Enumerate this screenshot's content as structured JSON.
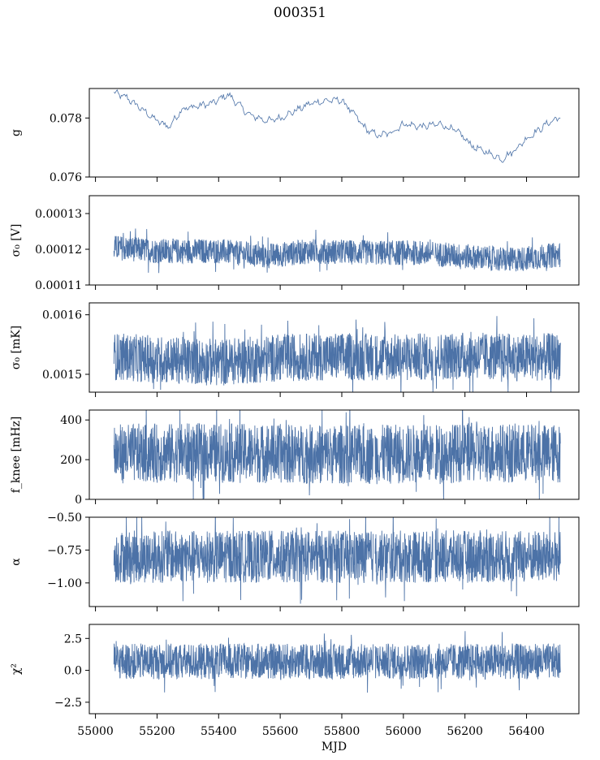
{
  "title": "000351",
  "colors": {
    "series": "#4c72a7",
    "frame": "#000000"
  },
  "chart_data": [
    {
      "type": "line",
      "key": "g",
      "ylabel": "g",
      "ylim": [
        0.076,
        0.079
      ],
      "yticks": [
        0.076,
        0.078
      ],
      "ytick_labels": [
        "0.076",
        "0.078"
      ],
      "style": "trend",
      "x": [
        55060,
        55100,
        55150,
        55200,
        55240,
        55280,
        55330,
        55380,
        55430,
        55450,
        55500,
        55560,
        55600,
        55640,
        55700,
        55760,
        55800,
        55850,
        55880,
        55920,
        55960,
        56000,
        56060,
        56120,
        56180,
        56230,
        56280,
        56320,
        56360,
        56400,
        56440,
        56480,
        56510
      ],
      "y": [
        0.07885,
        0.0787,
        0.0783,
        0.0779,
        0.0777,
        0.0783,
        0.0784,
        0.0785,
        0.0788,
        0.0786,
        0.0781,
        0.0779,
        0.078,
        0.0782,
        0.0785,
        0.0786,
        0.0786,
        0.078,
        0.0776,
        0.0774,
        0.0775,
        0.0778,
        0.0777,
        0.0778,
        0.0775,
        0.077,
        0.0768,
        0.0766,
        0.0769,
        0.0773,
        0.0776,
        0.0779,
        0.078
      ]
    },
    {
      "type": "line",
      "key": "sigma0_v",
      "ylabel": "σ₀ [V]",
      "ylim": [
        0.00011,
        0.000135
      ],
      "yticks": [
        0.00011,
        0.00012,
        0.00013
      ],
      "ytick_labels": [
        "0.00011",
        "0.00012",
        "0.00013"
      ],
      "style": "band",
      "x": [
        55060,
        55200,
        55400,
        55550,
        55700,
        55900,
        56050,
        56200,
        56350,
        56510
      ],
      "y": [
        0.0001205,
        0.0001195,
        0.0001195,
        0.000118,
        0.0001195,
        0.000119,
        0.000119,
        0.000118,
        0.000117,
        0.0001185
      ],
      "band_half_width": 3.5e-06
    },
    {
      "type": "line",
      "key": "sigma0_mk",
      "ylabel": "σ₀ [mK]",
      "ylim": [
        0.00147,
        0.00162
      ],
      "yticks": [
        0.0015,
        0.0016
      ],
      "ytick_labels": [
        "0.0015",
        "0.0016"
      ],
      "style": "band",
      "x": [
        55060,
        55200,
        55400,
        55600,
        55800,
        56000,
        56200,
        56400,
        56510
      ],
      "y": [
        0.00153,
        0.001525,
        0.00152,
        0.001528,
        0.00153,
        0.001528,
        0.001532,
        0.001528,
        0.00153
      ],
      "band_half_width": 4e-05
    },
    {
      "type": "line",
      "key": "fknee",
      "ylabel": "f_knee [mHz]",
      "ylim": [
        0,
        450
      ],
      "yticks": [
        0,
        200,
        400
      ],
      "ytick_labels": [
        "0",
        "200",
        "400"
      ],
      "style": "band",
      "x": [
        55060,
        55300,
        55600,
        55900,
        56200,
        56510
      ],
      "y": [
        230,
        235,
        230,
        225,
        235,
        230
      ],
      "band_half_width": 150
    },
    {
      "type": "line",
      "key": "alpha",
      "ylabel": "α",
      "ylim": [
        -1.18,
        -0.5
      ],
      "yticks": [
        -1.0,
        -0.75,
        -0.5
      ],
      "ytick_labels": [
        "−1.00",
        "−0.75",
        "−0.50"
      ],
      "style": "band",
      "x": [
        55060,
        55300,
        55600,
        55900,
        56200,
        56510
      ],
      "y": [
        -0.8,
        -0.8,
        -0.8,
        -0.8,
        -0.8,
        -0.8
      ],
      "band_half_width": 0.2
    },
    {
      "type": "line",
      "key": "chi2",
      "ylabel": "χ²",
      "ylim": [
        -3.4,
        3.6
      ],
      "yticks": [
        -2.5,
        0.0,
        2.5
      ],
      "ytick_labels": [
        "−2.5",
        "0.0",
        "2.5"
      ],
      "style": "band",
      "x": [
        55060,
        55300,
        55600,
        55900,
        56200,
        56510
      ],
      "y": [
        0.7,
        0.7,
        0.7,
        0.7,
        0.7,
        0.7
      ],
      "band_half_width": 1.4,
      "xlabel": "MJD",
      "xticks": [
        55000,
        55200,
        55400,
        55600,
        55800,
        56000,
        56200,
        56400
      ],
      "xtick_labels": [
        "55000",
        "55200",
        "55400",
        "55600",
        "55800",
        "56000",
        "56200",
        "56400"
      ]
    }
  ],
  "shared_x": {
    "xlim": [
      54980,
      56570
    ],
    "gaps": [
      55905,
      56100
    ]
  }
}
